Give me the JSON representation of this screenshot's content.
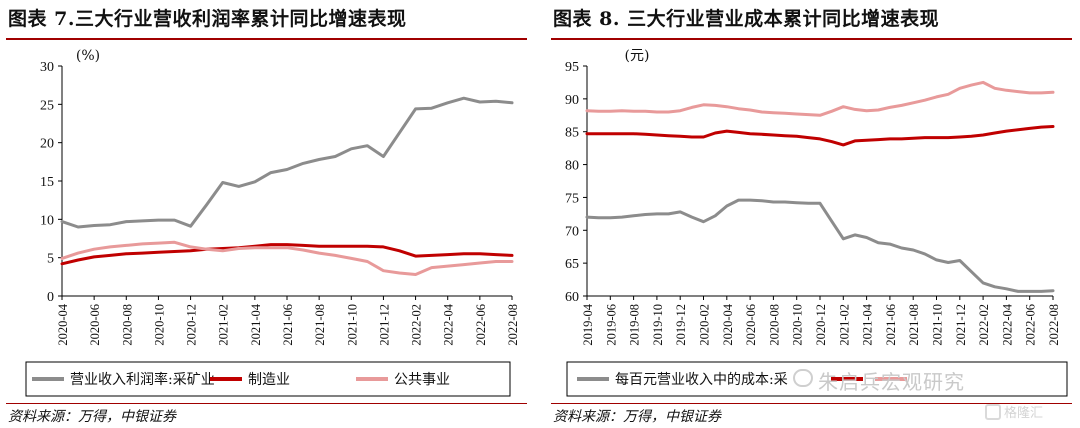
{
  "left_panel": {
    "title": "图表 7.三大行业营收利润率累计同比增速表现",
    "source": "资料来源：万得，中银证券"
  },
  "right_panel": {
    "title": "图表 8. 三大行业营业成本累计同比增速表现",
    "source": "资料来源：万得，中银证券"
  },
  "watermark": "朱启兵宏观研究",
  "logo_text": "格隆汇",
  "chart_data": [
    {
      "type": "line",
      "unit_label": "(%)",
      "ylim": [
        0,
        30
      ],
      "yticks": [
        0,
        5,
        10,
        15,
        20,
        25,
        30
      ],
      "x": [
        "2020-04",
        "2020-05",
        "2020-06",
        "2020-07",
        "2020-08",
        "2020-09",
        "2020-10",
        "2020-11",
        "2020-12",
        "2021-01",
        "2021-02",
        "2021-03",
        "2021-04",
        "2021-05",
        "2021-06",
        "2021-07",
        "2021-08",
        "2021-09",
        "2021-10",
        "2021-11",
        "2021-12",
        "2022-01",
        "2022-02",
        "2022-03",
        "2022-04",
        "2022-05",
        "2022-06",
        "2022-07",
        "2022-08"
      ],
      "xtick_labels": [
        "2020-04",
        "2020-06",
        "2020-08",
        "2020-10",
        "2020-12",
        "2021-02",
        "2021-04",
        "2021-06",
        "2021-08",
        "2021-10",
        "2021-12",
        "2022-02",
        "2022-04",
        "2022-06",
        "2022-08"
      ],
      "series": [
        {
          "name": "营业收入利润率:采矿业",
          "color": "#8c8c8c",
          "values": [
            9.7,
            9.0,
            9.2,
            9.3,
            9.7,
            9.8,
            9.9,
            9.9,
            9.1,
            11.9,
            14.8,
            14.3,
            14.9,
            16.1,
            16.5,
            17.3,
            17.8,
            18.2,
            19.2,
            19.6,
            18.2,
            21.3,
            24.4,
            24.5,
            25.2,
            25.8,
            25.3,
            25.4,
            25.2
          ]
        },
        {
          "name": "制造业",
          "color": "#c00000",
          "values": [
            4.2,
            4.7,
            5.1,
            5.3,
            5.5,
            5.6,
            5.7,
            5.8,
            5.9,
            6.1,
            6.2,
            6.3,
            6.5,
            6.7,
            6.7,
            6.6,
            6.5,
            6.5,
            6.5,
            6.5,
            6.4,
            5.9,
            5.2,
            5.3,
            5.4,
            5.5,
            5.5,
            5.4,
            5.3
          ]
        },
        {
          "name": "公共事业",
          "color": "#e89a9a",
          "values": [
            4.9,
            5.6,
            6.1,
            6.4,
            6.6,
            6.8,
            6.9,
            7.0,
            6.4,
            6.1,
            5.9,
            6.2,
            6.3,
            6.3,
            6.3,
            6.0,
            5.6,
            5.3,
            4.9,
            4.5,
            3.3,
            3.0,
            2.8,
            3.7,
            3.9,
            4.1,
            4.3,
            4.5,
            4.5
          ]
        }
      ]
    },
    {
      "type": "line",
      "unit_label": "(元)",
      "ylim": [
        60,
        95
      ],
      "yticks": [
        60,
        65,
        70,
        75,
        80,
        85,
        90,
        95
      ],
      "x": [
        "2019-04",
        "2019-05",
        "2019-06",
        "2019-07",
        "2019-08",
        "2019-09",
        "2019-10",
        "2019-11",
        "2019-12",
        "2020-01",
        "2020-02",
        "2020-03",
        "2020-04",
        "2020-05",
        "2020-06",
        "2020-07",
        "2020-08",
        "2020-09",
        "2020-10",
        "2020-11",
        "2020-12",
        "2021-01",
        "2021-02",
        "2021-03",
        "2021-04",
        "2021-05",
        "2021-06",
        "2021-07",
        "2021-08",
        "2021-09",
        "2021-10",
        "2021-11",
        "2021-12",
        "2022-01",
        "2022-02",
        "2022-03",
        "2022-04",
        "2022-05",
        "2022-06",
        "2022-07",
        "2022-08"
      ],
      "xtick_labels": [
        "2019-04",
        "2019-06",
        "2019-08",
        "2019-10",
        "2019-12",
        "2020-02",
        "2020-04",
        "2020-06",
        "2020-08",
        "2020-10",
        "2020-12",
        "2021-02",
        "2021-04",
        "2021-06",
        "2021-08",
        "2021-10",
        "2021-12",
        "2022-02",
        "2022-04",
        "2022-06",
        "2022-08"
      ],
      "series": [
        {
          "name": "每百元营业收入中的成本:采",
          "color": "#8c8c8c",
          "values": [
            72.0,
            71.9,
            71.9,
            72.0,
            72.2,
            72.4,
            72.5,
            72.5,
            72.8,
            72.0,
            71.3,
            72.2,
            73.7,
            74.6,
            74.6,
            74.5,
            74.3,
            74.3,
            74.2,
            74.1,
            74.1,
            71.4,
            68.7,
            69.3,
            68.9,
            68.1,
            67.9,
            67.3,
            67.0,
            66.4,
            65.5,
            65.1,
            65.4,
            63.7,
            62.0,
            61.4,
            61.1,
            60.7,
            60.7,
            60.7,
            60.8
          ]
        },
        {
          "name": "",
          "color": "#c00000",
          "values": [
            84.7,
            84.7,
            84.7,
            84.7,
            84.7,
            84.6,
            84.5,
            84.4,
            84.3,
            84.2,
            84.2,
            84.8,
            85.1,
            84.9,
            84.7,
            84.6,
            84.5,
            84.4,
            84.3,
            84.1,
            83.9,
            83.5,
            83.0,
            83.6,
            83.7,
            83.8,
            83.9,
            83.9,
            84.0,
            84.1,
            84.1,
            84.1,
            84.2,
            84.3,
            84.5,
            84.8,
            85.1,
            85.3,
            85.5,
            85.7,
            85.8
          ]
        },
        {
          "name": "",
          "color": "#e89a9a",
          "values": [
            88.2,
            88.1,
            88.1,
            88.2,
            88.1,
            88.1,
            88.0,
            88.0,
            88.2,
            88.7,
            89.1,
            89.0,
            88.8,
            88.5,
            88.3,
            88.0,
            87.9,
            87.8,
            87.7,
            87.6,
            87.5,
            88.1,
            88.8,
            88.4,
            88.2,
            88.3,
            88.7,
            89.0,
            89.4,
            89.8,
            90.3,
            90.7,
            91.6,
            92.1,
            92.5,
            91.6,
            91.3,
            91.1,
            90.9,
            90.9,
            91.0
          ]
        }
      ]
    }
  ]
}
